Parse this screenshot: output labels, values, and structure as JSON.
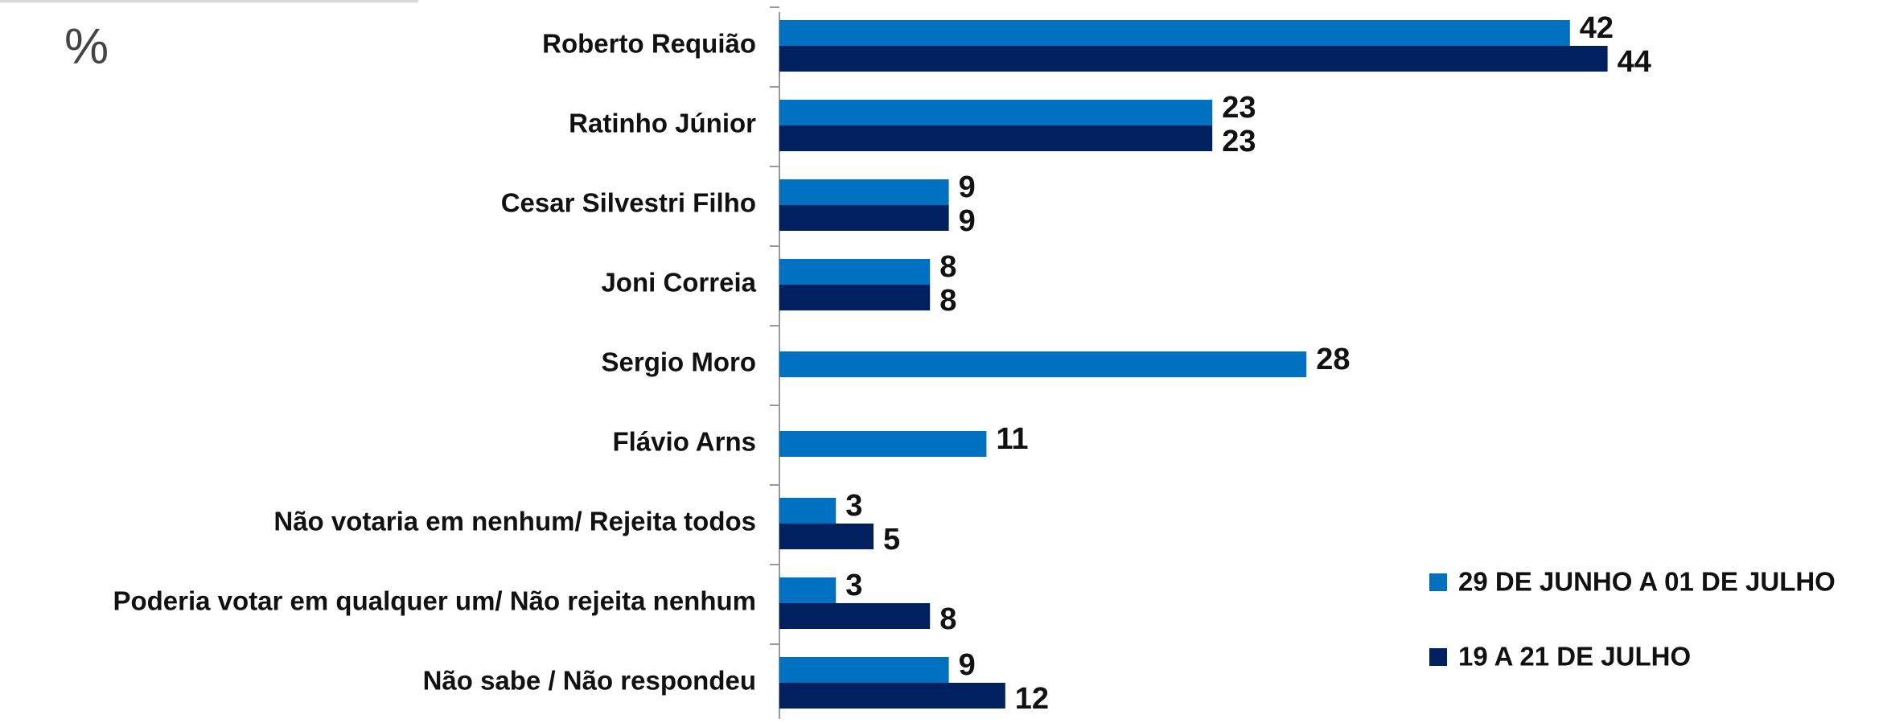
{
  "chart_data": {
    "type": "bar",
    "orientation": "horizontal",
    "unit_label": "%",
    "categories": [
      "Roberto Requião",
      "Ratinho Júnior",
      "Cesar Silvestri Filho",
      "Joni Correia",
      "Sergio Moro",
      "Flávio Arns",
      "Não votaria em nenhum/ Rejeita todos",
      "Poderia votar em qualquer um/ Não rejeita nenhum",
      "Não sabe / Não respondeu"
    ],
    "series": [
      {
        "name": "29 DE JUNHO A 01 DE JULHO",
        "color": "#0070c0",
        "values": [
          42,
          23,
          9,
          8,
          28,
          11,
          3,
          3,
          9
        ]
      },
      {
        "name": "19 A 21 DE JULHO",
        "color": "#002060",
        "values": [
          44,
          23,
          9,
          8,
          null,
          null,
          5,
          8,
          12
        ]
      }
    ],
    "legend": "right"
  }
}
